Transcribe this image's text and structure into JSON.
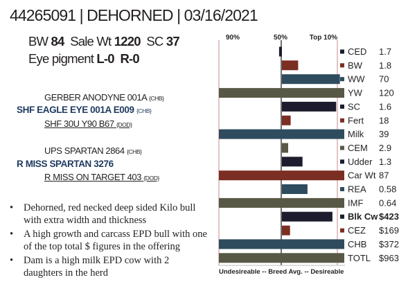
{
  "header": {
    "title": "44265091 | DEHORNED | 03/16/2021"
  },
  "stats": {
    "bw_label": "BW",
    "bw_value": "84",
    "salewt_label": "Sale Wt",
    "salewt_value": "1220",
    "sc_label": "SC",
    "sc_value": "37",
    "eye_label": "Eye pigment",
    "eye_left": "L-0",
    "eye_right": "R-0"
  },
  "pedigree": {
    "sire_sire": {
      "name": "GERBER ANODYNE 001A",
      "tag": "{CHB}"
    },
    "sire": {
      "name": "SHF EAGLE EYE 001A E009",
      "tag": "{CHB}"
    },
    "sire_dam": {
      "name": "SHF 30U Y90 B67",
      "tag": "{DOD}"
    },
    "dam_sire": {
      "name": "UPS SPARTAN 2864",
      "tag": "{CHB}"
    },
    "dam": {
      "name": "R MISS SPARTAN 3276",
      "tag": ""
    },
    "dam_dam": {
      "name": "R MISS ON TARGET 403",
      "tag": "{DOD}"
    }
  },
  "notes": [
    "Dehorned, red necked deep sided Kilo bull with extra width and thickness",
    "A high growth and carcass EPD bull with one of the top total $ figures in the offering",
    "Dam is a high milk EPD cow with 2 daughters in the herd"
  ],
  "bullet_char": "•",
  "chart_data": {
    "type": "bar",
    "title": "",
    "top_labels": [
      "90%",
      "50%",
      "Top 10%"
    ],
    "bottom_labels": [
      "Undesireable",
      "--",
      "Breed Avg.",
      "--",
      "Desireable"
    ],
    "bottom_text": "Undesireable -- Breed Avg. --  Desireable",
    "reference_values": [
      0,
      50,
      90
    ],
    "percentile_domain": [
      -10,
      100
    ],
    "categories": [
      "CED",
      "BW",
      "WW",
      "YW",
      "SC",
      "Fert",
      "Milk",
      "CEM",
      "Udder",
      "Car Wt",
      "REA",
      "IMF",
      "Blk Cw",
      "CEZ",
      "CHB",
      "TOTL"
    ],
    "values": [
      "1.7",
      "1.8",
      "70",
      "120",
      "1.6",
      "18",
      "39",
      "2.9",
      "1.3",
      "87",
      "0.58",
      "0.64",
      "$423",
      "$169",
      "$372",
      "$963"
    ],
    "bar_percentiles": [
      -4.5,
      26,
      93,
      100,
      87,
      14,
      100,
      10,
      33,
      100,
      41,
      100,
      81,
      13,
      100,
      100
    ],
    "series_colors": [
      "#1c1c2e",
      "#7b2e22",
      "#2e4c5e",
      "#585846",
      "#1c1c2e",
      "#7b2e22",
      "#2e4c5e",
      "#585846",
      "#1c1c2e",
      "#7b2e22",
      "#2e4c5e",
      "#585846",
      "#1c1c2e",
      "#7b2e22",
      "#2e4c5e",
      "#585846"
    ],
    "bold_rows": [
      "Blk Cw"
    ]
  },
  "colors": {
    "navy": "#1e3a5f",
    "text": "#231f20",
    "axis_line": "#8b3a3a"
  }
}
